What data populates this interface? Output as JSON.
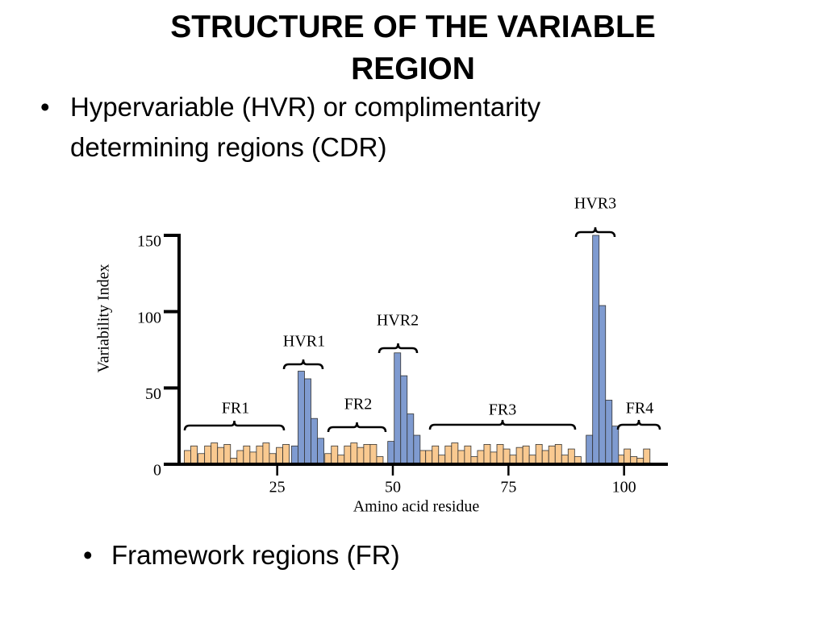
{
  "title": "STRUCTURE OF THE VARIABLE REGION",
  "bullets": [
    "Hypervariable (HVR) or complimentarity determining regions (CDR)",
    "Framework regions (FR)"
  ],
  "chart_data": {
    "type": "bar",
    "x_label": "Amino acid residue",
    "y_label": "Variability Index",
    "xlim": [
      5,
      110
    ],
    "xticks": [
      25,
      50,
      75,
      100
    ],
    "ylim": [
      0,
      150
    ],
    "yticks": [
      0,
      50,
      100,
      150
    ],
    "series": [
      {
        "name": "FR",
        "color": "#f9c990",
        "x": [
          5.6,
          7.0,
          8.6,
          10.0,
          11.4,
          12.8,
          14.2,
          15.6,
          17.0,
          18.4,
          19.8,
          21.2,
          22.6,
          24.0,
          25.5,
          26.9,
          36.0,
          37.4,
          38.8,
          40.2,
          41.6,
          43.0,
          44.4,
          45.8,
          47.2,
          56.4,
          57.8,
          59.2,
          60.6,
          62.0,
          63.4,
          64.8,
          66.2,
          67.6,
          69.0,
          70.4,
          71.8,
          73.2,
          74.6,
          76.0,
          77.4,
          78.8,
          80.2,
          81.6,
          83.0,
          84.4,
          85.8,
          87.2,
          88.6,
          90.0,
          99.3,
          100.7,
          102.1,
          103.5,
          104.9
        ],
        "values": [
          9,
          12,
          7,
          12,
          14,
          11,
          13,
          4,
          9,
          12,
          8,
          12,
          14,
          7,
          11,
          13,
          7,
          12,
          6,
          12,
          14,
          11,
          13,
          13,
          5,
          9,
          9,
          12,
          6,
          12,
          14,
          9,
          12,
          5,
          9,
          13,
          8,
          13,
          10,
          6,
          11,
          12,
          6,
          13,
          9,
          12,
          13,
          6,
          10,
          5,
          6,
          10,
          5,
          4,
          10
        ]
      },
      {
        "name": "HVR",
        "color": "#7f9bd0",
        "x": [
          28.8,
          30.2,
          31.6,
          33.0,
          34.4,
          49.6,
          51.0,
          52.4,
          53.8,
          55.2,
          92.5,
          93.9,
          95.3,
          96.7,
          98.1
        ],
        "values": [
          12,
          61,
          56,
          30,
          17,
          15,
          73,
          58,
          33,
          19,
          19,
          150,
          104,
          42,
          25
        ]
      }
    ],
    "annotations": [
      "FR1",
      "HVR1",
      "FR2",
      "HVR2",
      "FR3",
      "HVR3",
      "FR4"
    ]
  }
}
